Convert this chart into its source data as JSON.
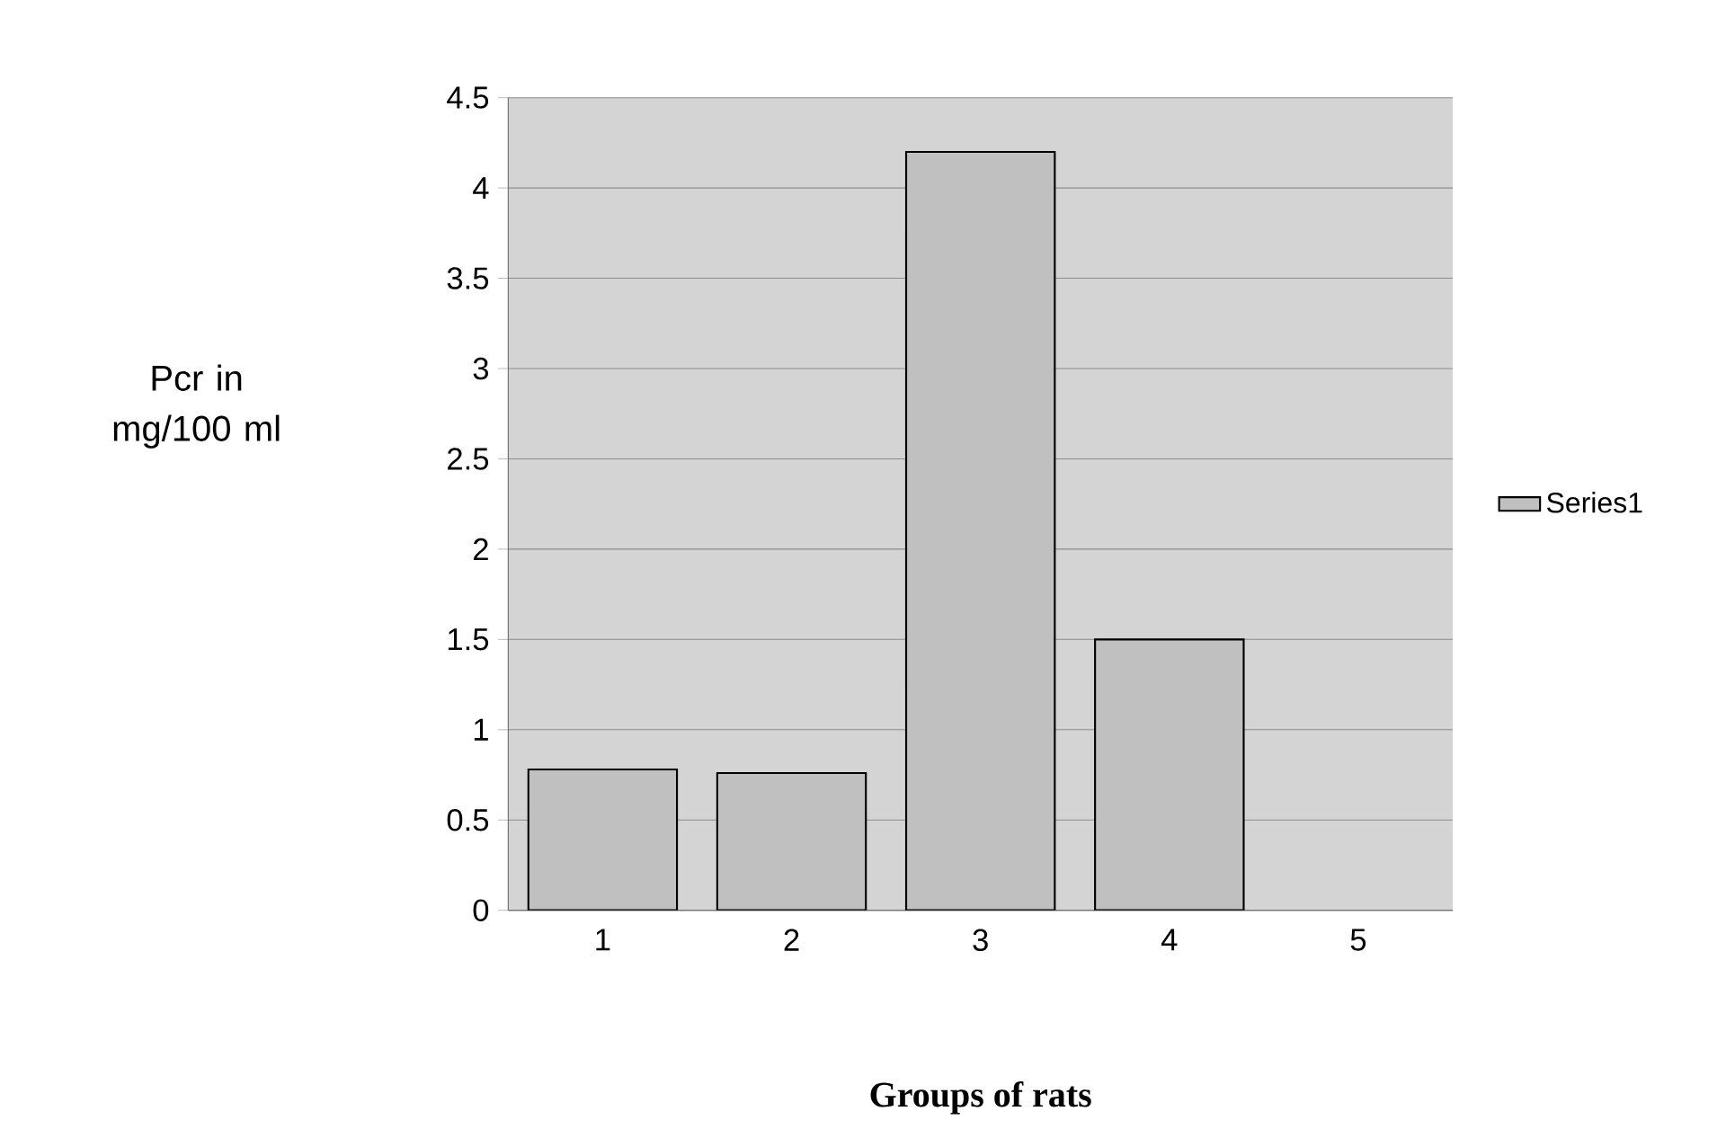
{
  "chart_data": {
    "type": "bar",
    "xlabel": "Groups of rats",
    "ylabel": "Pcr in mg/100 ml",
    "categories": [
      "1",
      "2",
      "3",
      "4",
      "5"
    ],
    "series": [
      {
        "name": "Series1",
        "color": "#c0c0c0",
        "values": [
          0.78,
          0.76,
          4.2,
          1.5,
          null
        ]
      }
    ],
    "ylim": [
      0,
      4.5
    ],
    "yticks": [
      0,
      0.5,
      1,
      1.5,
      2,
      2.5,
      3,
      3.5,
      4,
      4.5
    ],
    "grid": "y",
    "legend": "right"
  }
}
